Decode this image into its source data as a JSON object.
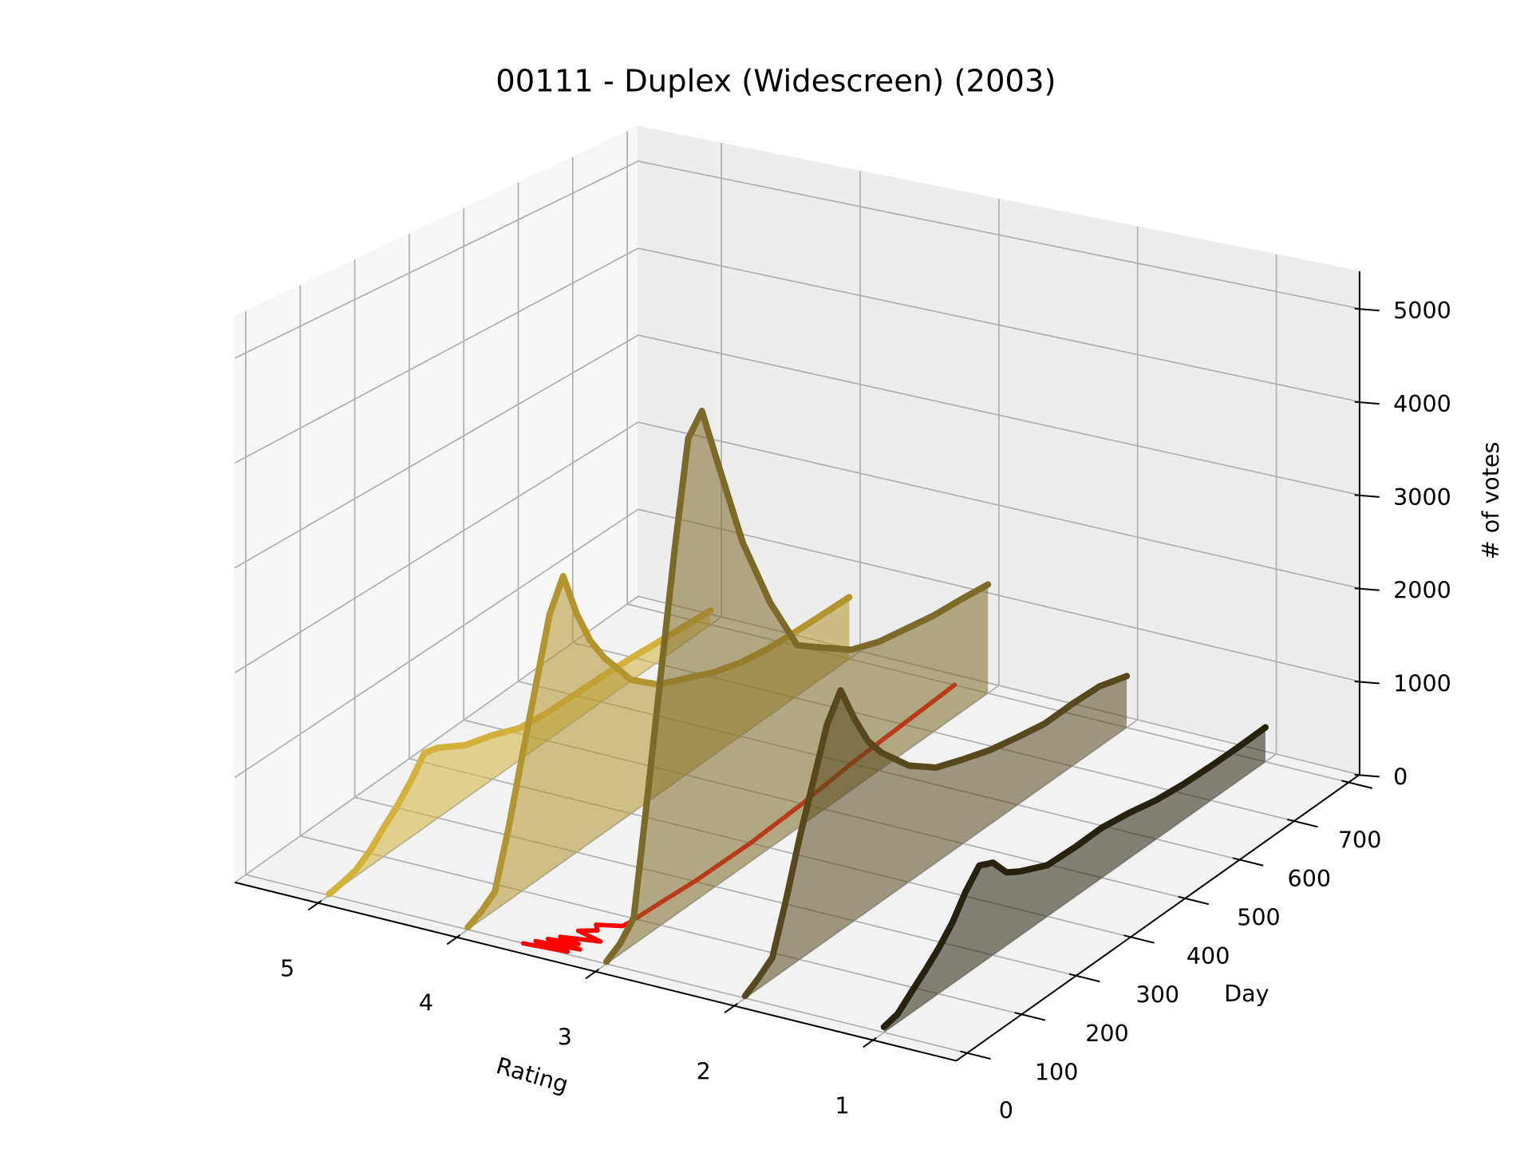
{
  "chart_data": {
    "type": "line3d",
    "title": "00111 - Duplex (Widescreen) (2003)",
    "xlabel": "Rating",
    "ylabel": "Day",
    "zlabel": "# of votes",
    "xlim": [
      0.4,
      5.6
    ],
    "ylim": [
      -20,
      720
    ],
    "zlim": [
      0,
      5400
    ],
    "xticks": [
      1,
      2,
      3,
      4,
      5
    ],
    "yticks": [
      0,
      100,
      200,
      300,
      400,
      500,
      600,
      700
    ],
    "zticks": [
      0,
      1000,
      2000,
      3000,
      4000,
      5000
    ],
    "grid": true,
    "x": [
      0,
      25,
      50,
      75,
      100,
      125,
      150,
      175,
      200,
      225,
      250,
      300,
      350,
      400,
      450,
      500,
      550,
      600,
      650,
      700
    ],
    "series": [
      {
        "rating": 5,
        "color": "#d4b23a",
        "values": [
          10,
          30,
          60,
          150,
          280,
          400,
          550,
          740,
          700,
          620,
          540,
          450,
          330,
          290,
          280,
          270,
          250,
          220,
          190,
          160
        ]
      },
      {
        "rating": 4,
        "color": "#b3952f",
        "values": [
          20,
          80,
          180,
          700,
          1300,
          1900,
          2500,
          2800,
          2350,
          2000,
          1750,
          1350,
          1120,
          1000,
          870,
          780,
          730,
          710,
          700,
          690
        ]
      },
      {
        "rating": 3,
        "color": "#7d6a28",
        "values": [
          20,
          100,
          250,
          1300,
          2400,
          3500,
          4500,
          4700,
          4200,
          3700,
          3200,
          2450,
          1850,
          1650,
          1450,
          1350,
          1300,
          1250,
          1230,
          1200
        ]
      },
      {
        "rating": 2,
        "color": "#57491d",
        "values": [
          20,
          100,
          200,
          650,
          1150,
          1600,
          2050,
          2300,
          1950,
          1650,
          1450,
          1150,
          950,
          850,
          760,
          700,
          650,
          660,
          650,
          560
        ]
      },
      {
        "rating": 1,
        "color": "#27220e",
        "values": [
          50,
          80,
          190,
          300,
          420,
          570,
          780,
          940,
          880,
          700,
          620,
          500,
          490,
          500,
          460,
          400,
          370,
          360,
          360,
          370
        ]
      }
    ],
    "mean_rating": {
      "color": "#ff0000",
      "x": [
        0,
        5,
        10,
        15,
        20,
        25,
        30,
        40,
        50,
        60,
        70,
        80,
        90,
        150,
        200,
        300,
        400,
        500,
        600,
        700
      ],
      "values": [
        3.6,
        3.3,
        3.55,
        3.25,
        3.5,
        3.3,
        3.45,
        3.2,
        3.4,
        3.3,
        3.35,
        3.2,
        3.19,
        3.17,
        3.15,
        3.14,
        3.16,
        3.2,
        3.22,
        3.24
      ]
    }
  }
}
